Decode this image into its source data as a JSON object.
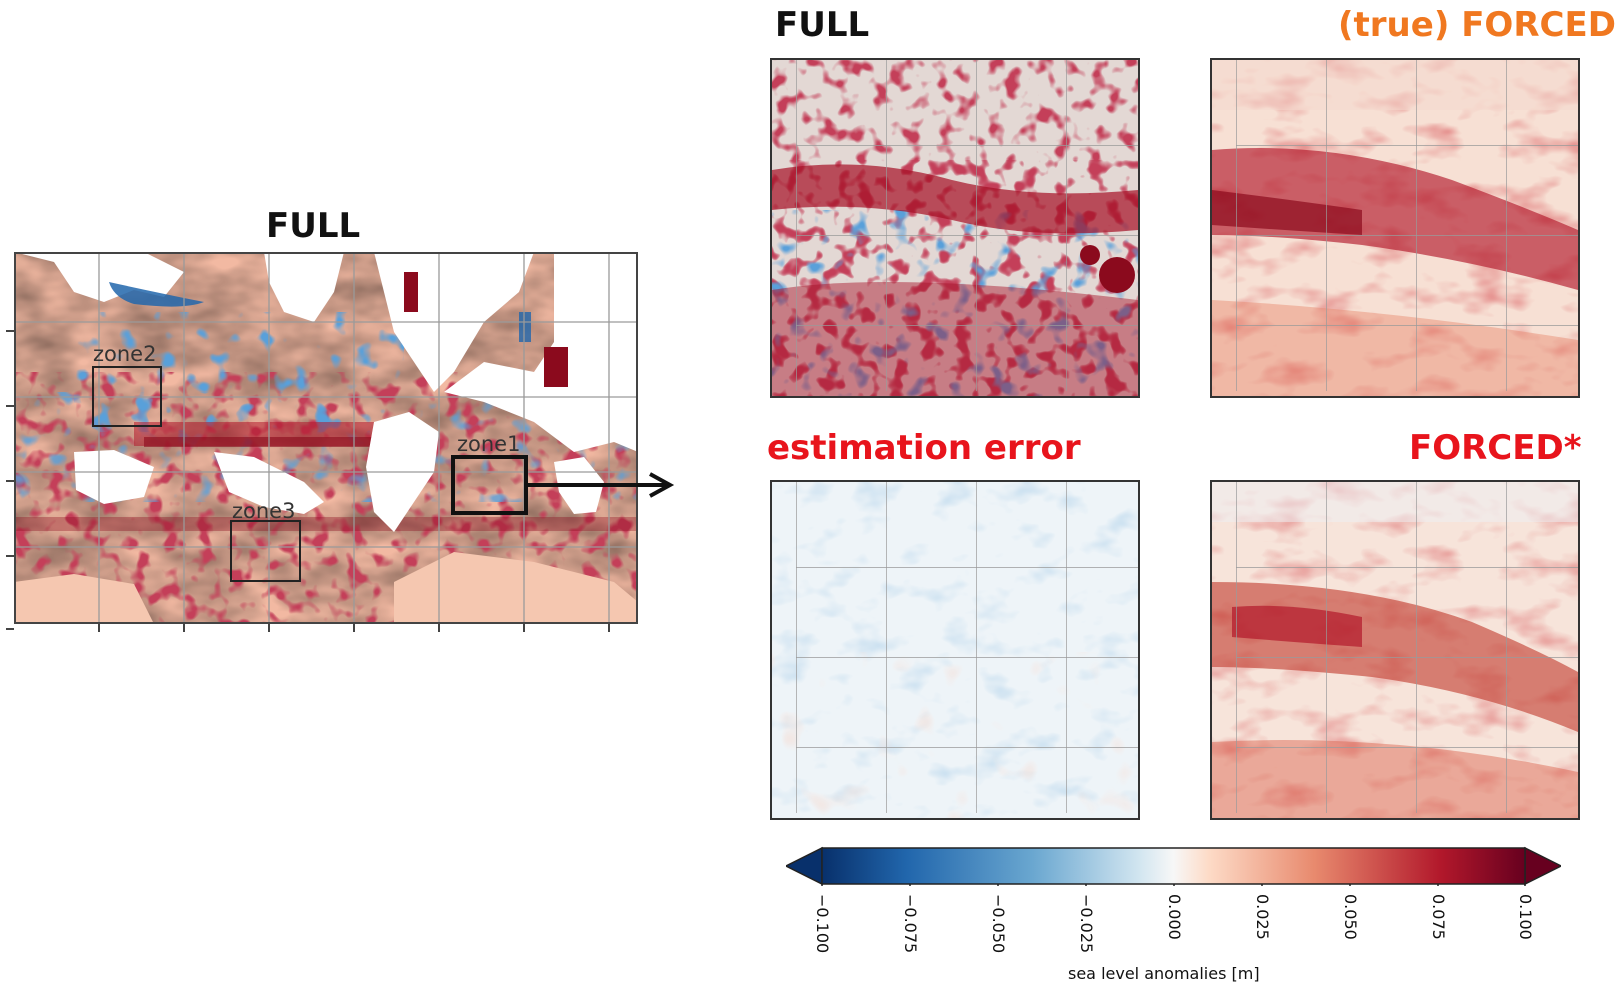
{
  "titles": {
    "world_map": "FULL",
    "panel_full": "FULL",
    "panel_true_forced": "(true) FORCED",
    "panel_error": "estimation error",
    "panel_forced_star": "FORCED*"
  },
  "colors": {
    "true_forced_title": "#f07820",
    "error_title": "#e8141c",
    "forced_star_title": "#e8141c",
    "black_title": "#111111"
  },
  "zones": [
    {
      "label": "zone2"
    },
    {
      "label": "zone1"
    },
    {
      "label": "zone3"
    }
  ],
  "colorbar": {
    "label": "sea level anomalies [m]",
    "ticks": [
      "−0.100",
      "−0.075",
      "−0.050",
      "−0.025",
      "0.000",
      "0.025",
      "0.050",
      "0.075",
      "0.100"
    ],
    "range": [
      -0.1,
      0.1
    ],
    "colormap": "RdBu_r"
  },
  "icons": {
    "arrow": "right-arrow-icon"
  }
}
